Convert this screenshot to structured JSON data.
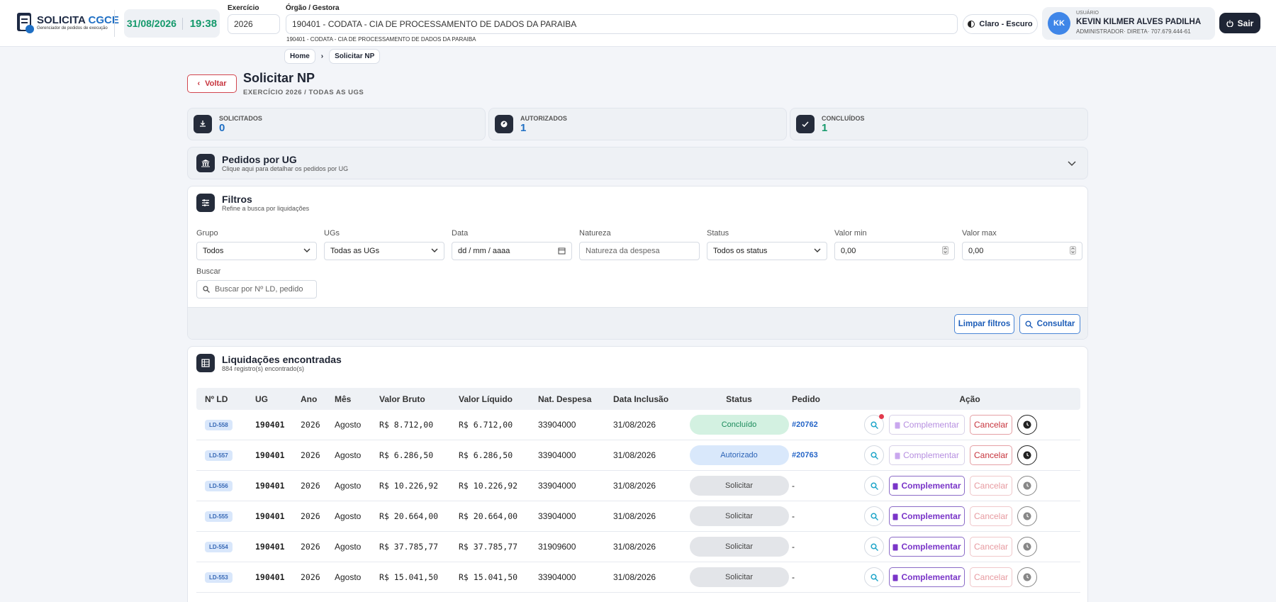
{
  "header": {
    "logo_title": "SOLICITA",
    "logo_brand": "CGCE",
    "logo_subtitle": "Gerenciador de pedidos de execução",
    "date": "31/08/2026",
    "time": "19:38",
    "exercicio_label": "Exercício",
    "exercicio_value": "2026",
    "orgao_label": "Órgão / Gestora",
    "orgao_value": "190401 - CODATA - CIA DE PROCESSAMENTO DE DADOS DA PARAIBA",
    "orgao_sub": "190401 - CODATA - CIA DE PROCESSAMENTO DE DADOS DA PARAIBA",
    "theme": "Claro - Escuro",
    "user_label": "USUÁRIO",
    "user_initials": "KK",
    "user_name": "KEVIN KILMER ALVES PADILHA",
    "user_role": "ADMINISTRADOR· DIRETA· 707.679.444-61",
    "logout": "Sair"
  },
  "breadcrumb": [
    "Home",
    "Solicitar NP"
  ],
  "page": {
    "back": "Voltar",
    "title": "Solicitar NP",
    "subtitle": "EXERCÍCIO 2026 / TODAS AS UGS"
  },
  "stats": [
    {
      "label": "SOLICITADOS",
      "value": 0
    },
    {
      "label": "AUTORIZADOS",
      "value": 1
    },
    {
      "label": "CONCLUÍDOS",
      "value": 1
    }
  ],
  "pedidos_ug": {
    "title": "Pedidos por UG",
    "hint": "Clique aqui para detalhar os pedidos por UG"
  },
  "filters": {
    "title": "Filtros",
    "subtitle": "Refine a busca por liquidações",
    "fields": [
      {
        "label": "Grupo",
        "value": "Todos"
      },
      {
        "label": "UGs",
        "value": "Todas as UGs"
      },
      {
        "label": "Data",
        "value": "dd / mm / aaaa"
      },
      {
        "label": "Natureza",
        "value": "Natureza da despesa"
      },
      {
        "label": "Status",
        "value": "Todos os status"
      },
      {
        "label": "Valor min",
        "value": "0,00"
      },
      {
        "label": "Valor max",
        "value": "0,00"
      }
    ],
    "search_label": "Buscar",
    "search_placeholder": "Buscar por Nº LD, pedido",
    "clear": "Limpar filtros",
    "submit": "Consultar"
  },
  "results": {
    "title": "Liquidações encontradas",
    "count": "884 registro(s) encontrado(s)",
    "columns": [
      "Nº LD",
      "UG",
      "Ano",
      "Mês",
      "Valor Bruto",
      "Valor Líquido",
      "Nat. Despesa",
      "Data Inclusão",
      "Status",
      "Pedido",
      "Ação"
    ],
    "complementar": "Complementar",
    "cancelar": "Cancelar",
    "rows": [
      [
        "LD-558",
        "190401",
        "2026",
        "Agosto",
        "R$ 8.712,00",
        "R$ 6.712,00",
        "33904000",
        "31/08/2026",
        "Concluído",
        "#20762"
      ],
      [
        "LD-557",
        "190401",
        "2026",
        "Agosto",
        "R$ 6.286,50",
        "R$ 6.286,50",
        "33904000",
        "31/08/2026",
        "Autorizado",
        "#20763"
      ],
      [
        "LD-556",
        "190401",
        "2026",
        "Agosto",
        "R$ 10.226,92",
        "R$ 10.226,92",
        "33904000",
        "31/08/2026",
        "Solicitar",
        "-"
      ],
      [
        "LD-555",
        "190401",
        "2026",
        "Agosto",
        "R$ 20.664,00",
        "R$ 20.664,00",
        "33904000",
        "31/08/2026",
        "Solicitar",
        "-"
      ],
      [
        "LD-554",
        "190401",
        "2026",
        "Agosto",
        "R$ 37.785,77",
        "R$ 37.785,77",
        "31909600",
        "31/08/2026",
        "Solicitar",
        "-"
      ],
      [
        "LD-553",
        "190401",
        "2026",
        "Agosto",
        "R$ 15.041,50",
        "R$ 15.041,50",
        "33904000",
        "31/08/2026",
        "Solicitar",
        "-"
      ]
    ]
  }
}
